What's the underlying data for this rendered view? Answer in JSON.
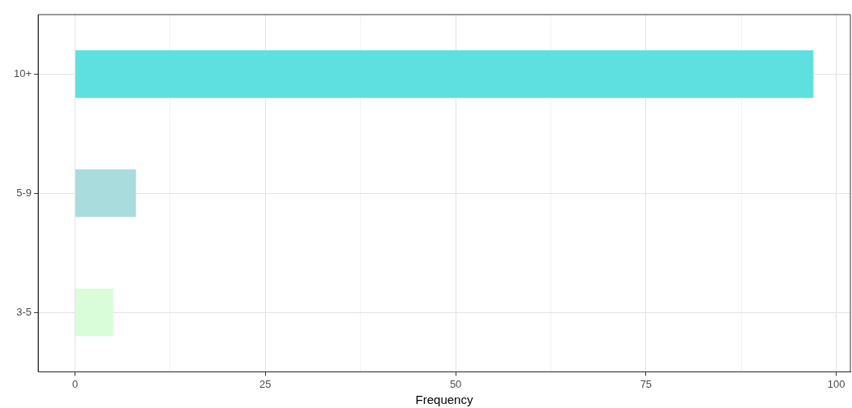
{
  "chart_data": {
    "type": "bar",
    "orientation": "horizontal",
    "xlabel": "Frequency",
    "categories": [
      "10+",
      "5-9",
      "3-5"
    ],
    "values": [
      97,
      8,
      5
    ],
    "colors": [
      "#5fe0e0",
      "#a9dcdc",
      "#d9fcd9"
    ],
    "xlim": [
      -4.85,
      101.85
    ],
    "xticks": [
      0,
      {
        "value": 12.5,
        "label": null
      },
      25,
      {
        "value": 37.5,
        "label": null
      },
      50,
      {
        "value": 62.5,
        "label": null
      },
      75,
      {
        "value": 87.5,
        "label": null
      },
      100
    ],
    "grid": true,
    "legend": false
  }
}
